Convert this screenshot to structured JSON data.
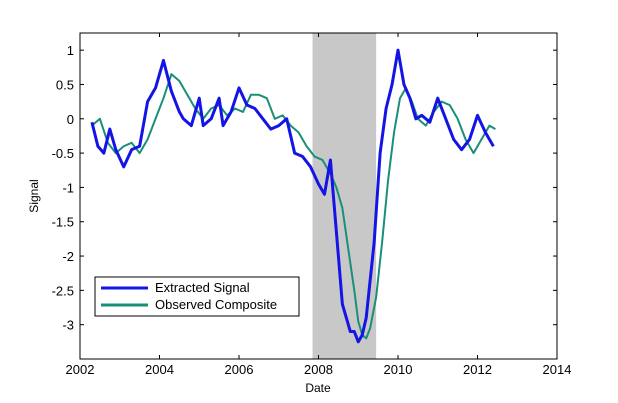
{
  "chart_data": {
    "type": "line",
    "title": "",
    "xlabel": "Date",
    "ylabel": "Signal",
    "xlim": [
      2002,
      2014
    ],
    "ylim": [
      -3.5,
      1.25
    ],
    "x_ticks": [
      "2002",
      "2004",
      "2006",
      "2008",
      "2010",
      "2012",
      "2014"
    ],
    "y_ticks": [
      "1",
      "0.5",
      "0",
      "-0.5",
      "-1",
      "-1.5",
      "-2",
      "-2.5",
      "-3"
    ],
    "grid": false,
    "legend_position": "bottom-left",
    "shaded_region": {
      "x": [
        2007.85,
        2009.45
      ],
      "color": "#c8c8c8"
    },
    "series": [
      {
        "name": "Extracted Signal",
        "color": "#1414e6",
        "x": [
          2002.3,
          2002.45,
          2002.6,
          2002.75,
          2002.9,
          2003.1,
          2003.3,
          2003.5,
          2003.7,
          2003.9,
          2004.0,
          2004.1,
          2004.3,
          2004.5,
          2004.6,
          2004.8,
          2005.0,
          2005.1,
          2005.3,
          2005.5,
          2005.6,
          2005.8,
          2006.0,
          2006.2,
          2006.4,
          2006.6,
          2006.8,
          2007.0,
          2007.2,
          2007.4,
          2007.6,
          2007.8,
          2008.0,
          2008.15,
          2008.3,
          2008.4,
          2008.5,
          2008.6,
          2008.7,
          2008.8,
          2008.9,
          2009.0,
          2009.1,
          2009.2,
          2009.4,
          2009.55,
          2009.7,
          2009.85,
          2010.0,
          2010.15,
          2010.3,
          2010.45,
          2010.6,
          2010.8,
          2011.0,
          2011.2,
          2011.4,
          2011.6,
          2011.8,
          2012.0,
          2012.2,
          2012.4
        ],
        "values": [
          -0.05,
          -0.4,
          -0.5,
          -0.15,
          -0.45,
          -0.7,
          -0.45,
          -0.4,
          0.25,
          0.45,
          0.65,
          0.85,
          0.4,
          0.1,
          0.0,
          -0.1,
          0.3,
          -0.1,
          0.0,
          0.3,
          -0.1,
          0.1,
          0.45,
          0.2,
          0.15,
          0.0,
          -0.15,
          -0.1,
          0.0,
          -0.5,
          -0.55,
          -0.7,
          -0.95,
          -1.1,
          -0.6,
          -1.3,
          -2.0,
          -2.7,
          -2.9,
          -3.1,
          -3.1,
          -3.25,
          -3.15,
          -2.9,
          -1.8,
          -0.5,
          0.15,
          0.5,
          1.0,
          0.5,
          0.3,
          0.0,
          0.05,
          -0.05,
          0.3,
          0.0,
          -0.3,
          -0.45,
          -0.3,
          0.05,
          -0.2,
          -0.4
        ]
      },
      {
        "name": "Observed Composite",
        "color": "#1a8f78",
        "x": [
          2002.3,
          2002.5,
          2002.7,
          2002.9,
          2003.1,
          2003.3,
          2003.5,
          2003.7,
          2003.9,
          2004.1,
          2004.3,
          2004.5,
          2004.7,
          2004.9,
          2005.1,
          2005.3,
          2005.5,
          2005.7,
          2005.9,
          2006.1,
          2006.3,
          2006.5,
          2006.7,
          2006.9,
          2007.1,
          2007.3,
          2007.5,
          2007.7,
          2007.9,
          2008.1,
          2008.3,
          2008.45,
          2008.6,
          2008.75,
          2008.9,
          2009.0,
          2009.1,
          2009.2,
          2009.3,
          2009.45,
          2009.6,
          2009.75,
          2009.9,
          2010.05,
          2010.2,
          2010.35,
          2010.5,
          2010.7,
          2010.9,
          2011.1,
          2011.3,
          2011.5,
          2011.7,
          2011.9,
          2012.1,
          2012.3,
          2012.45
        ],
        "values": [
          -0.1,
          0.0,
          -0.35,
          -0.5,
          -0.4,
          -0.35,
          -0.5,
          -0.3,
          0.0,
          0.3,
          0.65,
          0.55,
          0.35,
          0.15,
          0.0,
          0.15,
          0.2,
          0.05,
          0.15,
          0.1,
          0.35,
          0.35,
          0.3,
          0.0,
          0.05,
          -0.1,
          -0.2,
          -0.4,
          -0.55,
          -0.6,
          -0.8,
          -1.0,
          -1.3,
          -1.9,
          -2.5,
          -2.95,
          -3.15,
          -3.2,
          -3.05,
          -2.6,
          -1.8,
          -0.9,
          -0.2,
          0.3,
          0.45,
          0.25,
          0.0,
          -0.1,
          0.1,
          0.25,
          0.2,
          0.0,
          -0.3,
          -0.5,
          -0.3,
          -0.1,
          -0.15
        ]
      }
    ]
  }
}
